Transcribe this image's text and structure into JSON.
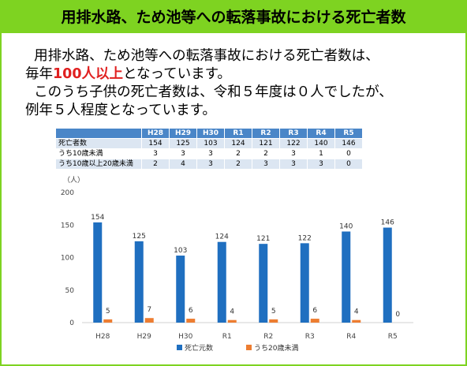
{
  "title": "用排水路、ため池等への転落事故における死亡者数",
  "paragraph": {
    "line1": "用排水路、ため池等への転落事故における死亡者数は、",
    "line2_pre": "毎年",
    "line2_red": "100人以上",
    "line2_post": "となっています。",
    "line3": "このうち子供の死亡者数は、令和５年度は０人でしたが、",
    "line4": "例年５人程度となっています。"
  },
  "table": {
    "headers": [
      "H28",
      "H29",
      "H30",
      "R1",
      "R2",
      "R3",
      "R4",
      "R5"
    ],
    "rows": [
      {
        "label": "死亡者数",
        "values": [
          "154",
          "125",
          "103",
          "124",
          "121",
          "122",
          "140",
          "146"
        ]
      },
      {
        "label": "うち10歳未満",
        "values": [
          "3",
          "3",
          "3",
          "2",
          "2",
          "3",
          "1",
          "0"
        ]
      },
      {
        "label": "うち10歳以上20歳未満",
        "values": [
          "2",
          "4",
          "3",
          "2",
          "3",
          "3",
          "3",
          "0"
        ]
      }
    ]
  },
  "chart_data": {
    "type": "bar",
    "categories": [
      "H28",
      "H29",
      "H30",
      "R1",
      "R2",
      "R3",
      "R4",
      "R5"
    ],
    "series": [
      {
        "name": "死亡元数",
        "values": [
          154,
          125,
          103,
          124,
          121,
          122,
          140,
          146
        ],
        "color": "#1f6fc0"
      },
      {
        "name": "うち20歳未満",
        "values": [
          5,
          7,
          6,
          4,
          5,
          6,
          4,
          0
        ],
        "color": "#ed7d31"
      }
    ],
    "ylabel": "（人）",
    "yticks": [
      0,
      50,
      100,
      150,
      200
    ],
    "ylim": [
      0,
      200
    ],
    "legend": "bottom"
  }
}
